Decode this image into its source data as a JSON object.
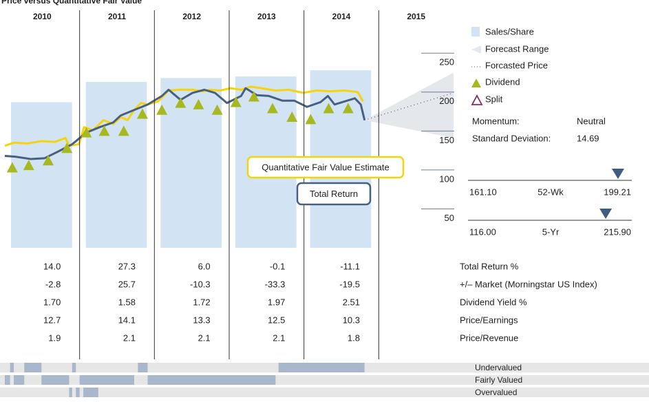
{
  "chart_data": {
    "type": "line",
    "title": "Price versus Quantitative Fair Value",
    "categories": [
      "2010",
      "2011",
      "2012",
      "2013",
      "2014",
      "2015"
    ],
    "xlim": [
      2010,
      2016
    ],
    "ylim": [
      0,
      305
    ],
    "yticks": [
      50,
      100,
      150,
      200,
      250
    ],
    "series": [
      {
        "name": "Quantitative Fair Value Estimate",
        "color": "#f5d40f",
        "x": [
          2010.0,
          2010.12,
          2010.3,
          2010.49,
          2010.67,
          2010.81,
          2010.86,
          2010.99,
          2011.06,
          2011.18,
          2011.32,
          2011.45,
          2011.55,
          2011.64,
          2011.73,
          2011.82,
          2011.91,
          2012.05,
          2012.19,
          2012.33,
          2012.51,
          2012.65,
          2012.74,
          2012.88,
          2013.02,
          2013.16,
          2013.29,
          2013.43,
          2013.62,
          2013.8,
          2013.99,
          2014.17,
          2014.35,
          2014.54,
          2014.72,
          2014.79
        ],
        "values": [
          131,
          135,
          134,
          137,
          136,
          141,
          131,
          133,
          155,
          151,
          164,
          159,
          168,
          164,
          177,
          186,
          184,
          188,
          202,
          203,
          203,
          201,
          203,
          202,
          205,
          203,
          207,
          205,
          202,
          203,
          199,
          202,
          201,
          202,
          200,
          188
        ]
      },
      {
        "name": "Total Return",
        "color": "#48607f",
        "x": [
          2010.0,
          2010.14,
          2010.35,
          2010.53,
          2010.72,
          2010.9,
          2011.09,
          2011.27,
          2011.45,
          2011.55,
          2011.73,
          2011.91,
          2012.1,
          2012.19,
          2012.35,
          2012.51,
          2012.67,
          2012.81,
          2012.97,
          2013.16,
          2013.22,
          2013.37,
          2013.53,
          2013.71,
          2013.87,
          2014.04,
          2014.22,
          2014.32,
          2014.41,
          2014.68,
          2014.76,
          2014.81
        ],
        "values": [
          118,
          117,
          114,
          115,
          124,
          133,
          148,
          155,
          161,
          170,
          177,
          184,
          195,
          203,
          190,
          199,
          203,
          199,
          186,
          195,
          205,
          196,
          195,
          189,
          189,
          181,
          187,
          195,
          184,
          192,
          184,
          164
        ]
      }
    ],
    "sales_share": {
      "name": "Sales/Share",
      "color": "#d2e3f3",
      "values": [
        187,
        213,
        218,
        220,
        228
      ]
    },
    "forecast": {
      "range_name": "Forecast Range",
      "range_color": "#e4e7eb",
      "price_name": "Forcasted Price",
      "x": [
        2014.81,
        2016
      ],
      "values": [
        164,
        199
      ],
      "low": [
        164,
        141
      ],
      "high": [
        164,
        225
      ]
    },
    "dividends": {
      "name": "Dividend",
      "color": "#a7b820",
      "x": [
        2010.1,
        2010.32,
        2010.58,
        2010.83,
        2011.09,
        2011.33,
        2011.59,
        2011.84,
        2012.1,
        2012.35,
        2012.59,
        2012.84,
        2013.09,
        2013.33,
        2013.58,
        2013.84,
        2014.09,
        2014.33,
        2014.59
      ],
      "values": [
        103,
        106,
        112,
        128,
        148,
        150,
        150,
        172,
        177,
        186,
        184,
        177,
        187,
        194,
        179,
        168,
        165,
        179,
        179
      ]
    },
    "split": {
      "name": "Split",
      "color": "#8e2a5e"
    },
    "stats": [
      {
        "label": "Momentum:",
        "value": "Neutral"
      },
      {
        "label": "Standard Deviation:",
        "value": "14.69"
      }
    ],
    "ranges": [
      {
        "name": "52-Wk",
        "low": {
          "value": 161.1,
          "label": "161.10"
        },
        "high": 199.21,
        "current": 196
      },
      {
        "name": "5-Yr",
        "low": {
          "value": 116,
          "label": "116.00"
        },
        "high": {
          "value": 215.9,
          "label": "215.90"
        },
        "current": 200
      }
    ],
    "table": [
      {
        "label": "Total Return %",
        "values": [
          "14.0",
          "27.3",
          "6.0",
          "-0.1",
          "-11.1"
        ]
      },
      {
        "label": "+/– Market (Morningstar US Index)",
        "values": [
          "-2.8",
          "25.7",
          "-10.3",
          "-33.3",
          "-19.5"
        ]
      },
      {
        "label": "Dividend Yield %",
        "values": [
          "1.70",
          "1.58",
          "1.72",
          "1.97",
          "2.51"
        ]
      },
      {
        "label": "Price/Earnings",
        "values": [
          "12.7",
          "14.1",
          "13.3",
          "12.5",
          "10.3"
        ]
      },
      {
        "label": "Price/Revenue",
        "values": [
          "1.9",
          "2.1",
          "2.1",
          "2.1",
          "1.8"
        ]
      }
    ],
    "valuation": [
      {
        "name": "Undervalued",
        "periods": [
          [
            2010.07,
            2010.12
          ],
          [
            2010.26,
            2010.49
          ],
          [
            2010.9,
            2010.95
          ],
          [
            2011.78,
            2011.91
          ],
          [
            2013.66,
            2014.81
          ]
        ]
      },
      {
        "name": "Fairly Valued",
        "periods": [
          [
            2010.0,
            2010.07
          ],
          [
            2010.12,
            2010.26
          ],
          [
            2010.49,
            2010.86
          ],
          [
            2011.0,
            2011.73
          ],
          [
            2011.91,
            2013.62
          ]
        ]
      },
      {
        "name": "Overvalued",
        "periods": [
          [
            2010.86,
            2010.9
          ],
          [
            2010.95,
            2011.0
          ],
          [
            2011.05,
            2011.25
          ]
        ]
      }
    ]
  }
}
